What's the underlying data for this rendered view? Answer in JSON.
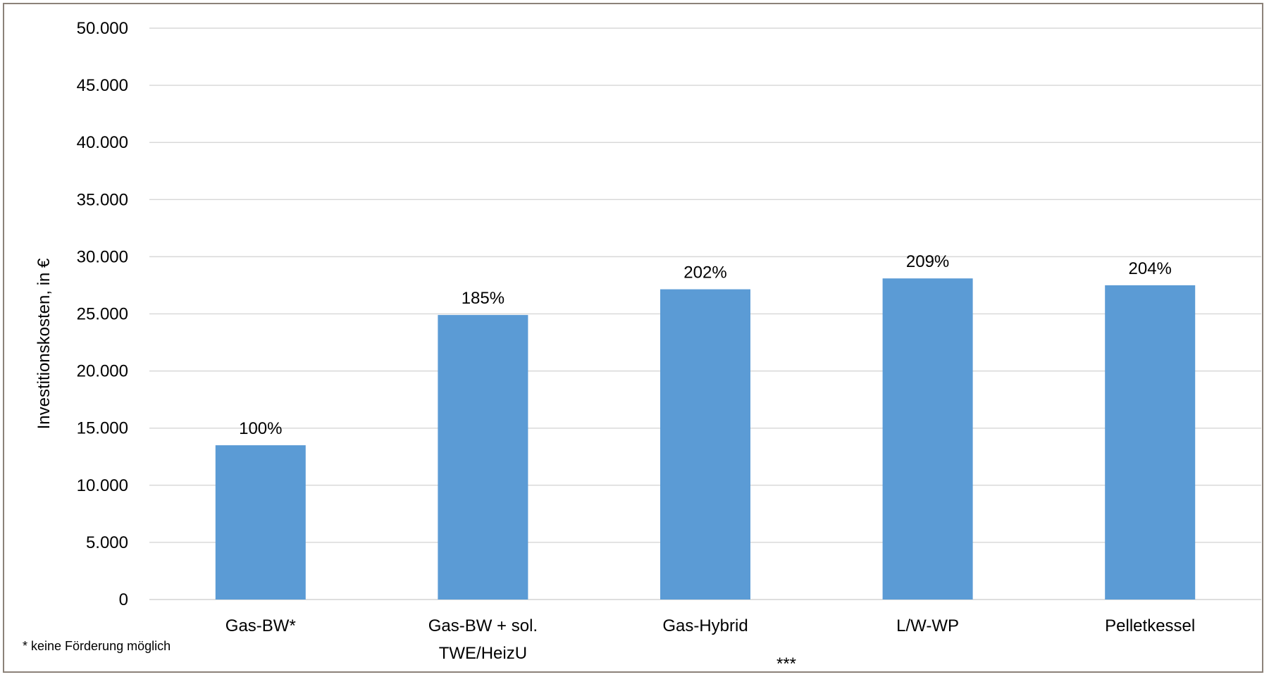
{
  "chart_data": {
    "type": "bar",
    "categories": [
      "Gas-BW*",
      "Gas-BW + sol. TWE/HeizU",
      "Gas-Hybrid",
      "L/W-WP",
      "Pelletkessel"
    ],
    "category_lines": [
      [
        "Gas-BW*"
      ],
      [
        "Gas-BW + sol.",
        "TWE/HeizU"
      ],
      [
        "Gas-Hybrid"
      ],
      [
        "L/W-WP"
      ],
      [
        "Pelletkessel"
      ]
    ],
    "values": [
      13500,
      24900,
      27150,
      28100,
      27500
    ],
    "data_labels": [
      "100%",
      "185%",
      "202%",
      "209%",
      "204%"
    ],
    "ylabel": "Investitionskosten, in €",
    "ylim": [
      0,
      50000
    ],
    "yticks": [
      0,
      5000,
      10000,
      15000,
      20000,
      25000,
      30000,
      35000,
      40000,
      45000,
      50000
    ],
    "ytick_labels": [
      "0",
      "5.000",
      "10.000",
      "15.000",
      "20.000",
      "25.000",
      "30.000",
      "35.000",
      "40.000",
      "45.000",
      "50.000"
    ],
    "grid": true,
    "bar_color": "#5b9bd5",
    "grid_color": "#d9d9d9",
    "frame_color": "#8c8279"
  },
  "footnote": "* keine Förderung möglich",
  "annotation": "***"
}
